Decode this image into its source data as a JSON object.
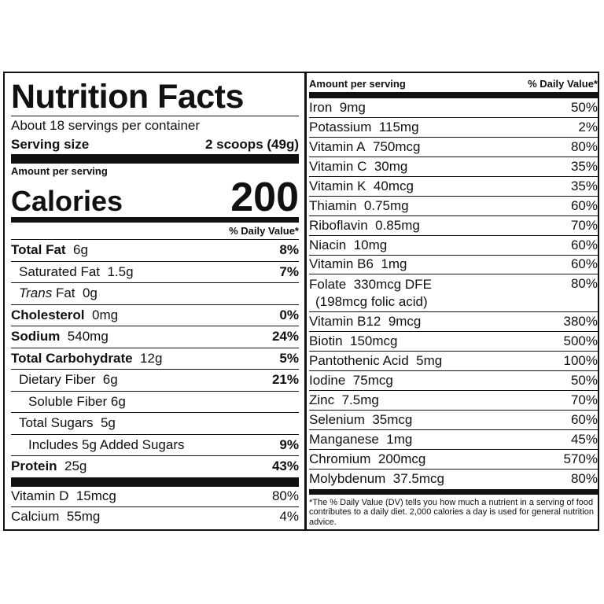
{
  "title": "Nutrition Facts",
  "servings": "About 18 servings per container",
  "serving_size_label": "Serving size",
  "serving_size_value": "2 scoops (49g)",
  "amount_per_serving": "Amount per serving",
  "calories_label": "Calories",
  "calories_value": "200",
  "dv_header": "% Daily Value*",
  "left_rows": [
    {
      "name": "Total Fat",
      "amount": "6g",
      "pct": "8%"
    },
    {
      "name": "Saturated Fat",
      "amount": "1.5g",
      "pct": "7%"
    },
    {
      "name": "Trans",
      "name_suffix": "Fat",
      "amount": "0g",
      "pct": ""
    },
    {
      "name": "Cholesterol",
      "amount": "0mg",
      "pct": "0%"
    },
    {
      "name": "Sodium",
      "amount": "540mg",
      "pct": "24%"
    },
    {
      "name": "Total Carbohydrate",
      "amount": "12g",
      "pct": "5%"
    },
    {
      "name": "Dietary Fiber",
      "amount": "6g",
      "pct": "21%"
    },
    {
      "name": "Soluble Fiber",
      "amount": "6g",
      "pct": ""
    },
    {
      "name": "Total Sugars",
      "amount": "5g",
      "pct": ""
    },
    {
      "name": "Includes 5g Added Sugars",
      "amount": "",
      "pct": "9%"
    },
    {
      "name": "Protein",
      "amount": "25g",
      "pct": "43%"
    }
  ],
  "left_vitamins": [
    {
      "name": "Vitamin D",
      "amount": "15mcg",
      "pct": "80%"
    },
    {
      "name": "Calcium",
      "amount": "55mg",
      "pct": "4%"
    }
  ],
  "right_header": {
    "left": "Amount per serving",
    "right": "% Daily Value*"
  },
  "right_rows": [
    {
      "name": "Iron",
      "amount": "9mg",
      "pct": "50%"
    },
    {
      "name": "Potassium",
      "amount": "115mg",
      "pct": "2%"
    },
    {
      "name": "Vitamin A",
      "amount": "750mcg",
      "pct": "80%"
    },
    {
      "name": "Vitamin C",
      "amount": "30mg",
      "pct": "35%"
    },
    {
      "name": "Vitamin K",
      "amount": "40mcg",
      "pct": "35%"
    },
    {
      "name": "Thiamin",
      "amount": "0.75mg",
      "pct": "60%"
    },
    {
      "name": "Riboflavin",
      "amount": "0.85mg",
      "pct": "70%"
    },
    {
      "name": "Niacin",
      "amount": "10mg",
      "pct": "60%"
    },
    {
      "name": "Vitamin B6",
      "amount": "1mg",
      "pct": "60%"
    },
    {
      "name": "Folate",
      "amount": "330mcg DFE",
      "sub": "(198mcg folic acid)",
      "pct": "80%"
    },
    {
      "name": "Vitamin B12",
      "amount": "9mcg",
      "pct": "380%"
    },
    {
      "name": "Biotin",
      "amount": "150mcg",
      "pct": "500%"
    },
    {
      "name": "Pantothenic Acid",
      "amount": "5mg",
      "pct": "100%"
    },
    {
      "name": "Iodine",
      "amount": "75mcg",
      "pct": "50%"
    },
    {
      "name": "Zinc",
      "amount": "7.5mg",
      "pct": "70%"
    },
    {
      "name": "Selenium",
      "amount": "35mcg",
      "pct": "60%"
    },
    {
      "name": "Manganese",
      "amount": "1mg",
      "pct": "45%"
    },
    {
      "name": "Chromium",
      "amount": "200mcg",
      "pct": "570%"
    },
    {
      "name": "Molybdenum",
      "amount": "37.5mcg",
      "pct": "80%"
    }
  ],
  "footnote": "*The % Daily Value (DV) tells you how much a nutrient in a serving of food contributes to a daily diet. 2,000 calories a day is used for general nutrition advice."
}
